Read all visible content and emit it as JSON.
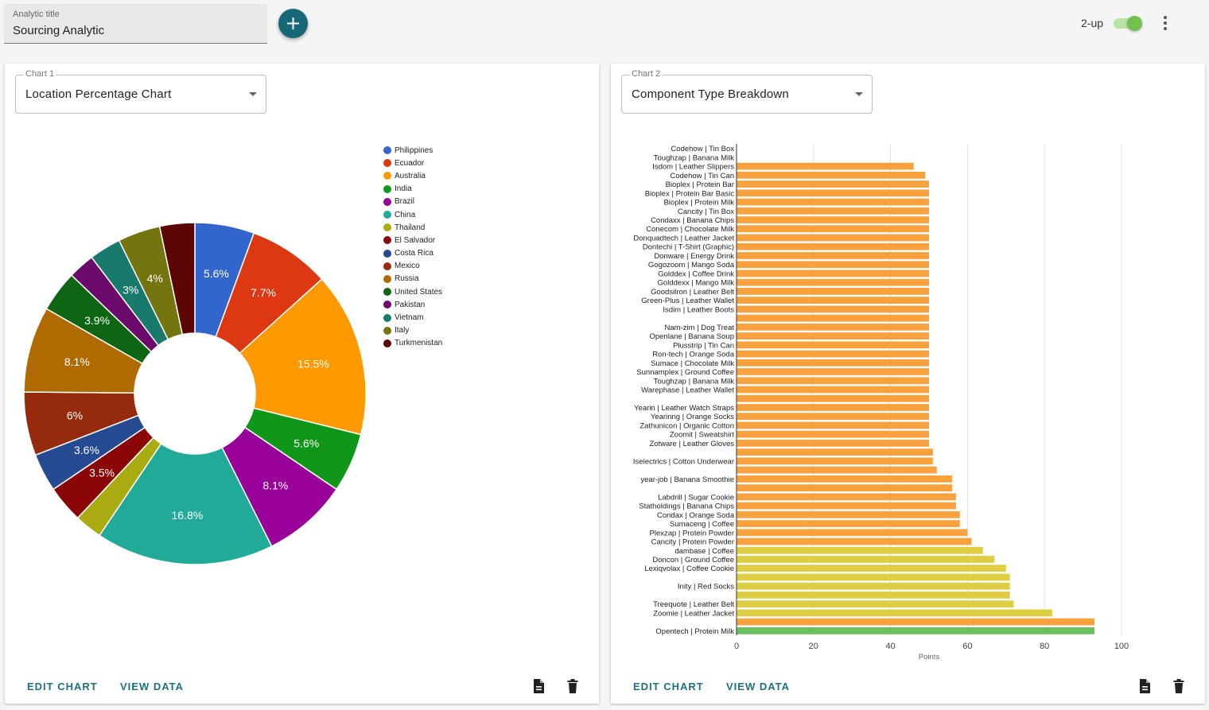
{
  "header": {
    "title_label": "Analytic title",
    "title_value": "Sourcing Analytic",
    "add_icon": "plus-icon",
    "twoup_label": "2-up",
    "twoup_on": true,
    "menu_icon": "more-vert-icon"
  },
  "colors": {
    "accent": "#166878",
    "action_text": "#1f6f83",
    "toggle": "#73c04f"
  },
  "card1": {
    "select_label": "Chart 1",
    "select_value": "Location Percentage Chart",
    "edit_label": "EDIT CHART",
    "view_label": "VIEW DATA",
    "doc_icon": "document-icon",
    "delete_icon": "trash-icon"
  },
  "card2": {
    "select_label": "Chart 2",
    "select_value": "Component Type Breakdown",
    "edit_label": "EDIT CHART",
    "view_label": "VIEW DATA",
    "doc_icon": "document-icon",
    "delete_icon": "trash-icon"
  },
  "chart_data": [
    {
      "type": "pie",
      "donut": true,
      "legend": "right",
      "slices": [
        {
          "label": "Philippines",
          "value": 5.6,
          "text": "5.6%",
          "color": "#3366cc"
        },
        {
          "label": "Ecuador",
          "value": 7.7,
          "text": "7.7%",
          "color": "#dc3912"
        },
        {
          "label": "Australia",
          "value": 15.5,
          "text": "15.5%",
          "color": "#ff9900"
        },
        {
          "label": "India",
          "value": 5.6,
          "text": "5.6%",
          "color": "#109618"
        },
        {
          "label": "Brazil",
          "value": 8.1,
          "text": "8.1%",
          "color": "#990099"
        },
        {
          "label": "China",
          "value": 16.8,
          "text": "16.8%",
          "color": "#22aa99"
        },
        {
          "label": "Thailand",
          "value": 2.6,
          "text": "",
          "color": "#aaaa11"
        },
        {
          "label": "El Salvador",
          "value": 3.5,
          "text": "3.5%",
          "color": "#8b0707"
        },
        {
          "label": "Costa Rica",
          "value": 3.6,
          "text": "3.6%",
          "color": "#254a91"
        },
        {
          "label": "Mexico",
          "value": 6,
          "text": "6%",
          "color": "#962a0d"
        },
        {
          "label": "Russia",
          "value": 8.1,
          "text": "8.1%",
          "color": "#b06b00"
        },
        {
          "label": "United States",
          "value": 3.9,
          "text": "3.9%",
          "color": "#0e6614"
        },
        {
          "label": "Pakistan",
          "value": 2.5,
          "text": "",
          "color": "#6b0a6b"
        },
        {
          "label": "Vietnam",
          "value": 3,
          "text": "3%",
          "color": "#177a6d"
        },
        {
          "label": "Italy",
          "value": 4,
          "text": "4%",
          "color": "#757510"
        },
        {
          "label": "Turkmenistan",
          "value": 3.3,
          "text": "",
          "color": "#5c0505"
        }
      ]
    },
    {
      "type": "bar",
      "orientation": "horizontal",
      "xlabel": "Points",
      "xlim": [
        0,
        100
      ],
      "xticks": [
        0,
        20,
        40,
        60,
        80,
        100
      ],
      "grid": true,
      "bars": [
        {
          "label": "Codehow | Tin Box",
          "value": 0,
          "color": "#f9a13d"
        },
        {
          "label": "Toughzap | Banana Milk",
          "value": 0,
          "color": "#f9a13d"
        },
        {
          "label": "Isdom | Leather Slippers",
          "value": 46,
          "color": "#f9a13d"
        },
        {
          "label": "Codehow | Tin Can",
          "value": 49,
          "color": "#f9a13d"
        },
        {
          "label": "Bioplex | Protein Bar",
          "value": 50,
          "color": "#f9a13d"
        },
        {
          "label": "Bioplex | Protein Bar Basic",
          "value": 50,
          "color": "#f9a13d"
        },
        {
          "label": "Bioplex | Protein Milk",
          "value": 50,
          "color": "#f9a13d"
        },
        {
          "label": "Cancity | Tin Box",
          "value": 50,
          "color": "#f9a13d"
        },
        {
          "label": "Condaxx | Banana Chips",
          "value": 50,
          "color": "#f9a13d"
        },
        {
          "label": "Conecom | Chocolate Milk",
          "value": 50,
          "color": "#f9a13d"
        },
        {
          "label": "Donquadtech | Leather Jacket",
          "value": 50,
          "color": "#f9a13d"
        },
        {
          "label": "Dontechi | T-Shirt (Graphic)",
          "value": 50,
          "color": "#f9a13d"
        },
        {
          "label": "Donware | Energy Drink",
          "value": 50,
          "color": "#f9a13d"
        },
        {
          "label": "Gogozoom | Mango Soda",
          "value": 50,
          "color": "#f9a13d"
        },
        {
          "label": "Golddex | Coffee Drink",
          "value": 50,
          "color": "#f9a13d"
        },
        {
          "label": "Golddexx | Mango Milk",
          "value": 50,
          "color": "#f9a13d"
        },
        {
          "label": "Goodsilron | Leather Belt",
          "value": 50,
          "color": "#f9a13d"
        },
        {
          "label": "Green-Plus | Leather Wallet",
          "value": 50,
          "color": "#f9a13d"
        },
        {
          "label": "Isdim | Leather Boots",
          "value": 50,
          "color": "#f9a13d"
        },
        {
          "label": "",
          "value": 50,
          "color": "#f9a13d"
        },
        {
          "label": "Nam-zim | Dog Treat",
          "value": 50,
          "color": "#f9a13d"
        },
        {
          "label": "Openlane | Banana Soup",
          "value": 50,
          "color": "#f9a13d"
        },
        {
          "label": "Plusstrip | Tin Can",
          "value": 50,
          "color": "#f9a13d"
        },
        {
          "label": "Ron-tech | Orange Soda",
          "value": 50,
          "color": "#f9a13d"
        },
        {
          "label": "Sumace | Chocolate Milk",
          "value": 50,
          "color": "#f9a13d"
        },
        {
          "label": "Sunnamplex | Ground Coffee",
          "value": 50,
          "color": "#f9a13d"
        },
        {
          "label": "Toughzap | Banana Milk",
          "value": 50,
          "color": "#f9a13d"
        },
        {
          "label": "Warephase | Leather Wallet",
          "value": 50,
          "color": "#f9a13d"
        },
        {
          "label": "",
          "value": 50,
          "color": "#f9a13d"
        },
        {
          "label": "Yearin | Leather Watch Straps",
          "value": 50,
          "color": "#f9a13d"
        },
        {
          "label": "Yearinng | Orange Socks",
          "value": 50,
          "color": "#f9a13d"
        },
        {
          "label": "Zathunicon | Organic Cotton",
          "value": 50,
          "color": "#f9a13d"
        },
        {
          "label": "Zoomit | Sweatshirt",
          "value": 50,
          "color": "#f9a13d"
        },
        {
          "label": "Zotware | Leather Gloves",
          "value": 50,
          "color": "#f9a13d"
        },
        {
          "label": "",
          "value": 51,
          "color": "#f9a13d"
        },
        {
          "label": "Iselectrics | Cotton Underwear",
          "value": 51,
          "color": "#f9a13d"
        },
        {
          "label": "",
          "value": 52,
          "color": "#f9a13d"
        },
        {
          "label": "year-job | Banana Smoothie",
          "value": 56,
          "color": "#f9a13d"
        },
        {
          "label": "",
          "value": 56,
          "color": "#f9a13d"
        },
        {
          "label": "Labdrill | Sugar Cookie",
          "value": 57,
          "color": "#f9a13d"
        },
        {
          "label": "Statholdings | Banana Chips",
          "value": 57,
          "color": "#f9a13d"
        },
        {
          "label": "Condax | Orange Soda",
          "value": 58,
          "color": "#f9a13d"
        },
        {
          "label": "Sumaceng | Coffee",
          "value": 58,
          "color": "#f9a13d"
        },
        {
          "label": "Plexzap | Protein Powder",
          "value": 60,
          "color": "#f9a13d"
        },
        {
          "label": "Cancity | Protein Powder",
          "value": 61,
          "color": "#f9a13d"
        },
        {
          "label": "dambase | Coffee",
          "value": 64,
          "color": "#dfcd42"
        },
        {
          "label": "Doncon | Ground Coffee",
          "value": 67,
          "color": "#dfcd42"
        },
        {
          "label": "Lexiqvolax | Coffee Cookie",
          "value": 70,
          "color": "#dfcd42"
        },
        {
          "label": "",
          "value": 71,
          "color": "#dfcd42"
        },
        {
          "label": "Inity | Red Socks",
          "value": 71,
          "color": "#dfcd42"
        },
        {
          "label": "",
          "value": 71,
          "color": "#dfcd42"
        },
        {
          "label": "Treequote | Leather Belt",
          "value": 72,
          "color": "#dfcd42"
        },
        {
          "label": "Zoomie | Leather Jacket",
          "value": 82,
          "color": "#dfcd42"
        },
        {
          "label": "",
          "value": 93,
          "color": "#f9a13d"
        },
        {
          "label": "Opentech | Protein Milk",
          "value": 93,
          "color": "#6abf5e"
        }
      ]
    }
  ]
}
